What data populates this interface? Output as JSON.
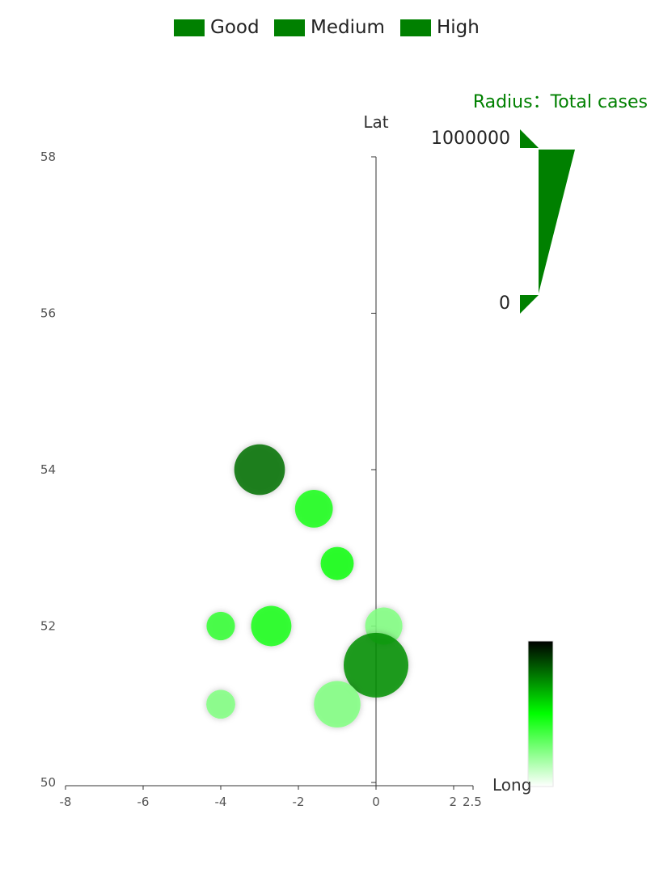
{
  "legend": {
    "items": [
      {
        "label": "Good",
        "color": "#008000"
      },
      {
        "label": "Medium",
        "color": "#008000"
      },
      {
        "label": "High",
        "color": "#008000"
      }
    ]
  },
  "size_visualmap": {
    "title": "Radius：Total cases",
    "max_label": "1000000",
    "min_label": "0",
    "color": "#008000"
  },
  "color_visualmap": {
    "colors": [
      "#ffffff",
      "#00ff00",
      "#000000"
    ]
  },
  "chart_data": {
    "type": "scatter",
    "xlabel": "Long",
    "ylabel": "Lat",
    "xlim": [
      -8,
      2.5
    ],
    "ylim": [
      50,
      58
    ],
    "x_ticks": [
      "-8",
      "-6",
      "-4",
      "-2",
      "0",
      "2",
      "2.5"
    ],
    "y_ticks": [
      "50",
      "52",
      "54",
      "56",
      "58"
    ],
    "size_range": [
      0,
      1000000
    ],
    "points": [
      {
        "long": -3.0,
        "lat": 54.0,
        "size_value": 730000,
        "color_level": 0.78
      },
      {
        "long": -1.6,
        "lat": 53.5,
        "size_value": 480000,
        "color_level": 0.46
      },
      {
        "long": -1.0,
        "lat": 52.8,
        "size_value": 390000,
        "color_level": 0.47
      },
      {
        "long": -4.0,
        "lat": 52.0,
        "size_value": 300000,
        "color_level": 0.4
      },
      {
        "long": -2.7,
        "lat": 52.0,
        "size_value": 530000,
        "color_level": 0.46
      },
      {
        "long": 0.2,
        "lat": 52.0,
        "size_value": 470000,
        "color_level": 0.25
      },
      {
        "long": 0.0,
        "lat": 51.5,
        "size_value": 1000000,
        "color_level": 0.72
      },
      {
        "long": -4.0,
        "lat": 51.0,
        "size_value": 310000,
        "color_level": 0.25
      },
      {
        "long": -1.0,
        "lat": 51.0,
        "size_value": 650000,
        "color_level": 0.25
      }
    ]
  }
}
